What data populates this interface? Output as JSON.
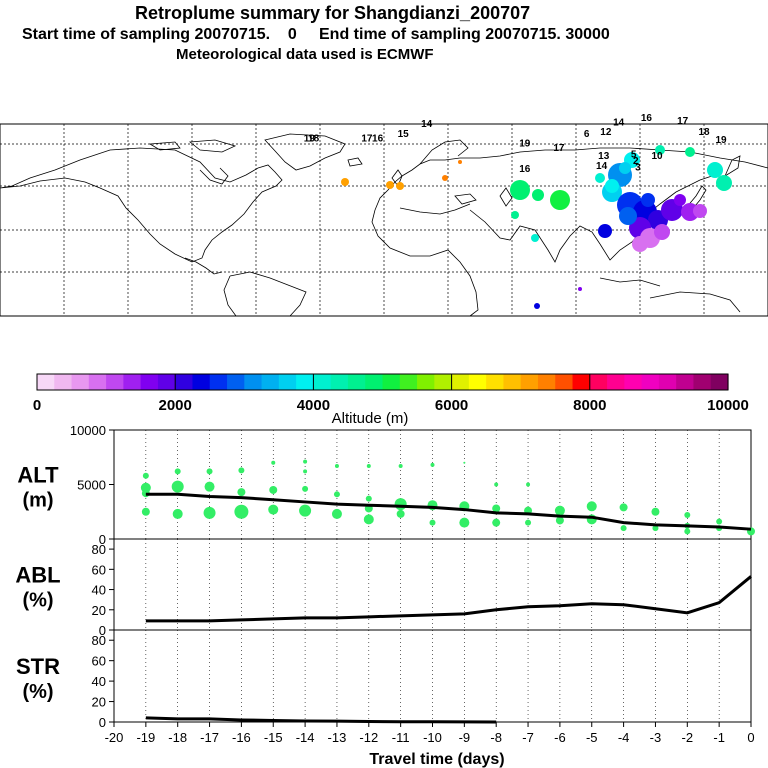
{
  "header": {
    "title": "Retroplume summary for Shangdianzi_200707",
    "subtitle_1": "Start time of sampling 20070715.    0     End time of sampling 20070715. 30000",
    "subtitle_2": "Meteorological data used is ECMWF"
  },
  "colorbar": {
    "title": "Altitude (m)",
    "ticks": [
      "0",
      "2000",
      "4000",
      "6000",
      "8000",
      "10000"
    ],
    "range": [
      0,
      10000
    ],
    "colors": [
      "#f7d8f7",
      "#f0b8f0",
      "#e898f0",
      "#d870f0",
      "#c048f0",
      "#a020f0",
      "#8000f0",
      "#6000e8",
      "#3000e0",
      "#0000e0",
      "#0030f0",
      "#0060f0",
      "#0090f0",
      "#00b0f0",
      "#00d0f0",
      "#00f0f0",
      "#00f0d0",
      "#00f0b0",
      "#00f090",
      "#00f070",
      "#10f040",
      "#40f020",
      "#80f000",
      "#b0f000",
      "#e0f000",
      "#ffff00",
      "#ffe000",
      "#ffc000",
      "#ffa000",
      "#ff8000",
      "#ff5000",
      "#ff0000",
      "#ff0060",
      "#ff0090",
      "#ff00b0",
      "#f000c0",
      "#e000b0",
      "#c00090",
      "#a00070",
      "#800060"
    ]
  },
  "map": {
    "labels": [
      {
        "t": "19",
        "lon": -35,
        "lat": 54
      },
      {
        "t": "18",
        "lon": -33,
        "lat": 54
      },
      {
        "t": "17",
        "lon": -8,
        "lat": 54
      },
      {
        "t": "16",
        "lon": -3,
        "lat": 54
      },
      {
        "t": "15",
        "lon": 9,
        "lat": 57
      },
      {
        "t": "14",
        "lon": 20,
        "lat": 63
      },
      {
        "t": "19",
        "lon": 66,
        "lat": 51
      },
      {
        "t": "17",
        "lon": 82,
        "lat": 48
      },
      {
        "t": "6",
        "lon": 95,
        "lat": 57
      },
      {
        "t": "12",
        "lon": 104,
        "lat": 58
      },
      {
        "t": "14",
        "lon": 110,
        "lat": 64
      },
      {
        "t": "16",
        "lon": 123,
        "lat": 67
      },
      {
        "t": "17",
        "lon": 140,
        "lat": 65
      },
      {
        "t": "18",
        "lon": 150,
        "lat": 58
      },
      {
        "t": "19",
        "lon": 158,
        "lat": 53
      },
      {
        "t": "13",
        "lon": 103,
        "lat": 43
      },
      {
        "t": "14",
        "lon": 102,
        "lat": 37
      },
      {
        "t": "16",
        "lon": 66,
        "lat": 35
      },
      {
        "t": "5",
        "lon": 117,
        "lat": 44
      },
      {
        "t": "10",
        "lon": 128,
        "lat": 43
      },
      {
        "t": "2",
        "lon": 118,
        "lat": 40
      },
      {
        "t": "3",
        "lon": 119,
        "lat": 36
      }
    ]
  },
  "chart_data": [
    {
      "type": "scatter",
      "panel": "ALT",
      "ylabel_line1": "ALT",
      "ylabel_line2": "(m)",
      "ylim": [
        0,
        10000
      ],
      "yticks": [
        "0",
        "5000",
        "10000"
      ],
      "x": [
        -19,
        -18,
        -17,
        -16,
        -15,
        -14,
        -13,
        -12,
        -11,
        -10,
        -9,
        -8,
        -7,
        -6,
        -5,
        -4,
        -3,
        -2,
        -1,
        0
      ],
      "median_altitude": [
        4100,
        4100,
        3900,
        3800,
        3600,
        3400,
        3200,
        3100,
        3000,
        2900,
        2700,
        2400,
        2300,
        2100,
        2000,
        1500,
        1300,
        1200,
        1100,
        900
      ],
      "clusters": [
        {
          "x": -19,
          "points": [
            [
              5800,
              3
            ],
            [
              4700,
              5
            ],
            [
              4200,
              4
            ],
            [
              2500,
              4
            ]
          ]
        },
        {
          "x": -18,
          "points": [
            [
              6200,
              3
            ],
            [
              4800,
              6
            ],
            [
              2300,
              5
            ]
          ]
        },
        {
          "x": -17,
          "points": [
            [
              6200,
              3
            ],
            [
              4800,
              5
            ],
            [
              2400,
              6
            ]
          ]
        },
        {
          "x": -16,
          "points": [
            [
              6300,
              3
            ],
            [
              4300,
              4
            ],
            [
              2500,
              7
            ]
          ]
        },
        {
          "x": -15,
          "points": [
            [
              7000,
              2
            ],
            [
              4500,
              4
            ],
            [
              2700,
              5
            ]
          ]
        },
        {
          "x": -14,
          "points": [
            [
              7100,
              2
            ],
            [
              6200,
              2
            ],
            [
              4600,
              3
            ],
            [
              2600,
              6
            ]
          ]
        },
        {
          "x": -13,
          "points": [
            [
              6700,
              2
            ],
            [
              4100,
              3
            ],
            [
              2300,
              5
            ]
          ]
        },
        {
          "x": -12,
          "points": [
            [
              6700,
              2
            ],
            [
              3700,
              3
            ],
            [
              2800,
              4
            ],
            [
              1800,
              5
            ]
          ]
        },
        {
          "x": -11,
          "points": [
            [
              6700,
              2
            ],
            [
              3200,
              6
            ],
            [
              2300,
              4
            ]
          ]
        },
        {
          "x": -10,
          "points": [
            [
              6800,
              2
            ],
            [
              3100,
              5
            ],
            [
              1500,
              3
            ]
          ]
        },
        {
          "x": -9,
          "points": [
            [
              7000,
              1
            ],
            [
              3000,
              5
            ],
            [
              1500,
              5
            ]
          ]
        },
        {
          "x": -8,
          "points": [
            [
              5000,
              2
            ],
            [
              2800,
              4
            ],
            [
              1500,
              4
            ]
          ]
        },
        {
          "x": -7,
          "points": [
            [
              5000,
              2
            ],
            [
              2600,
              4
            ],
            [
              1500,
              3
            ]
          ]
        },
        {
          "x": -6,
          "points": [
            [
              2600,
              5
            ],
            [
              1700,
              4
            ]
          ]
        },
        {
          "x": -5,
          "points": [
            [
              3000,
              5
            ],
            [
              1800,
              5
            ]
          ]
        },
        {
          "x": -4,
          "points": [
            [
              2900,
              4
            ],
            [
              1000,
              3
            ]
          ]
        },
        {
          "x": -3,
          "points": [
            [
              2500,
              4
            ],
            [
              1000,
              3
            ]
          ]
        },
        {
          "x": -2,
          "points": [
            [
              2200,
              3
            ],
            [
              1200,
              3
            ],
            [
              700,
              3
            ]
          ]
        },
        {
          "x": -1,
          "points": [
            [
              1600,
              3
            ],
            [
              1000,
              3
            ]
          ]
        },
        {
          "x": 0,
          "points": [
            [
              700,
              4
            ]
          ]
        }
      ]
    },
    {
      "type": "line",
      "panel": "ABL",
      "ylabel_line1": "ABL",
      "ylabel_line2": "(%)",
      "ylim": [
        0,
        90
      ],
      "yticks": [
        "0",
        "20",
        "40",
        "60",
        "80"
      ],
      "x": [
        -19,
        -18,
        -17,
        -16,
        -15,
        -14,
        -13,
        -12,
        -11,
        -10,
        -9,
        -8,
        -7,
        -6,
        -5,
        -4,
        -3,
        -2,
        -1,
        0
      ],
      "values": [
        9,
        9,
        9,
        10,
        11,
        12,
        12,
        13,
        14,
        15,
        16,
        20,
        23,
        24,
        26,
        25,
        21,
        17,
        27,
        53
      ]
    },
    {
      "type": "line",
      "panel": "STR",
      "ylabel_line1": "STR",
      "ylabel_line2": "(%)",
      "ylim": [
        0,
        90
      ],
      "yticks": [
        "0",
        "20",
        "40",
        "60",
        "80"
      ],
      "x": [
        -19,
        -18,
        -17,
        -16,
        -15,
        -14,
        -13,
        -12,
        -11,
        -10,
        -9,
        -8
      ],
      "values": [
        4,
        3,
        3,
        2,
        1.5,
        1,
        0.8,
        0.5,
        0.3,
        0.2,
        0.1,
        0
      ]
    }
  ],
  "xaxis": {
    "label": "Travel time (days)",
    "ticks": [
      "-20",
      "-19",
      "-18",
      "-17",
      "-16",
      "-15",
      "-14",
      "-13",
      "-12",
      "-11",
      "-10",
      "-9",
      "-8",
      "-7",
      "-6",
      "-5",
      "-4",
      "-3",
      "-2",
      "-1",
      "0"
    ]
  }
}
